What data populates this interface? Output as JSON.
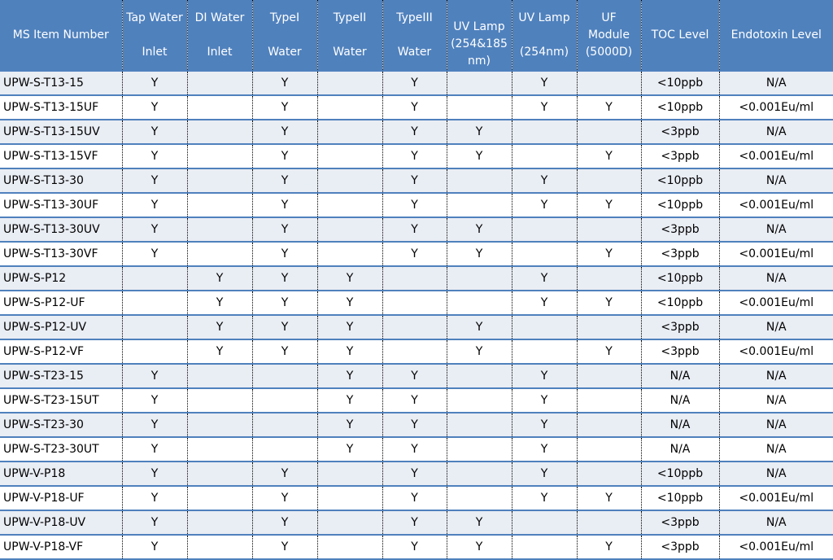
{
  "headers": [
    [
      "MS Item Number"
    ],
    [
      "Tap Water",
      "Inlet"
    ],
    [
      "DI Water",
      "Inlet"
    ],
    [
      "TypeI",
      "Water"
    ],
    [
      "TypeII",
      "Water"
    ],
    [
      "TypeIII",
      "Water"
    ],
    [
      "UV Lamp",
      "(254&185",
      "nm)"
    ],
    [
      "UV Lamp",
      "(254nm)"
    ],
    [
      "UF",
      "Module",
      "(5000D)"
    ],
    [
      "TOC Level"
    ],
    [
      "Endotoxin Level"
    ]
  ],
  "rows": [
    [
      "UPW-S-T13-15",
      "Y",
      "",
      "Y",
      "",
      "Y",
      "",
      "Y",
      "",
      "<10ppb",
      "N/A"
    ],
    [
      "UPW-S-T13-15UF",
      "Y",
      "",
      "Y",
      "",
      "Y",
      "",
      "Y",
      "Y",
      "<10ppb",
      "<0.001Eu/ml"
    ],
    [
      "UPW-S-T13-15UV",
      "Y",
      "",
      "Y",
      "",
      "Y",
      "Y",
      "",
      "",
      "<3ppb",
      "N/A"
    ],
    [
      "UPW-S-T13-15VF",
      "Y",
      "",
      "Y",
      "",
      "Y",
      "Y",
      "",
      "Y",
      "<3ppb",
      "<0.001Eu/ml"
    ],
    [
      "UPW-S-T13-30",
      "Y",
      "",
      "Y",
      "",
      "Y",
      "",
      "Y",
      "",
      "<10ppb",
      "N/A"
    ],
    [
      "UPW-S-T13-30UF",
      "Y",
      "",
      "Y",
      "",
      "Y",
      "",
      "Y",
      "Y",
      "<10ppb",
      "<0.001Eu/ml"
    ],
    [
      "UPW-S-T13-30UV",
      "Y",
      "",
      "Y",
      "",
      "Y",
      "Y",
      "",
      "",
      "<3ppb",
      "N/A"
    ],
    [
      "UPW-S-T13-30VF",
      "Y",
      "",
      "Y",
      "",
      "Y",
      "Y",
      "",
      "Y",
      "<3ppb",
      "<0.001Eu/ml"
    ],
    [
      "UPW-S-P12",
      "",
      "Y",
      "Y",
      "Y",
      "",
      "",
      "Y",
      "",
      "<10ppb",
      "N/A"
    ],
    [
      "UPW-S-P12-UF",
      "",
      "Y",
      "Y",
      "Y",
      "",
      "",
      "Y",
      "Y",
      "<10ppb",
      "<0.001Eu/ml"
    ],
    [
      "UPW-S-P12-UV",
      "",
      "Y",
      "Y",
      "Y",
      "",
      "Y",
      "",
      "",
      "<3ppb",
      "N/A"
    ],
    [
      "UPW-S-P12-VF",
      "",
      "Y",
      "Y",
      "Y",
      "",
      "Y",
      "",
      "Y",
      "<3ppb",
      "<0.001Eu/ml"
    ],
    [
      "UPW-S-T23-15",
      "Y",
      "",
      "",
      "Y",
      "Y",
      "",
      "Y",
      "",
      "N/A",
      "N/A"
    ],
    [
      "UPW-S-T23-15UT",
      "Y",
      "",
      "",
      "Y",
      "Y",
      "",
      "Y",
      "",
      "N/A",
      "N/A"
    ],
    [
      "UPW-S-T23-30",
      "Y",
      "",
      "",
      "Y",
      "Y",
      "",
      "Y",
      "",
      "N/A",
      "N/A"
    ],
    [
      "UPW-S-T23-30UT",
      "Y",
      "",
      "",
      "Y",
      "Y",
      "",
      "Y",
      "",
      "N/A",
      "N/A"
    ],
    [
      "UPW-V-P18",
      "Y",
      "",
      "Y",
      "",
      "Y",
      "",
      "Y",
      "",
      "<10ppb",
      "N/A"
    ],
    [
      "UPW-V-P18-UF",
      "Y",
      "",
      "Y",
      "",
      "Y",
      "",
      "Y",
      "Y",
      "<10ppb",
      "<0.001Eu/ml"
    ],
    [
      "UPW-V-P18-UV",
      "Y",
      "",
      "Y",
      "",
      "Y",
      "Y",
      "",
      "",
      "<3ppb",
      "N/A"
    ],
    [
      "UPW-V-P18-VF",
      "Y",
      "",
      "Y",
      "",
      "Y",
      "Y",
      "",
      "Y",
      "<3ppb",
      "<0.001Eu/ml"
    ]
  ],
  "colors": {
    "header_bg": "#4f81bd",
    "header_text": "#ffffff",
    "row_alt": "#e9edf4",
    "row_border": "#4f81bd"
  }
}
